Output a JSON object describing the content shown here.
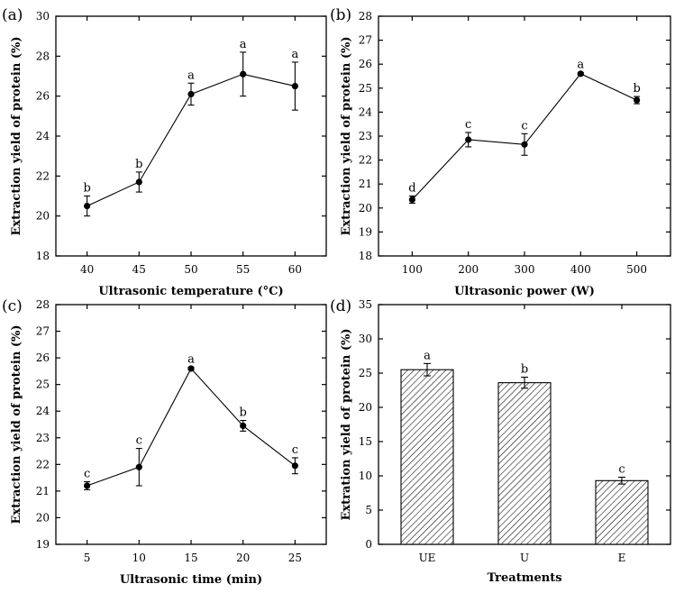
{
  "chart_data": [
    {
      "panel": "(a)",
      "type": "line",
      "x": [
        40,
        45,
        50,
        55,
        60
      ],
      "values": [
        20.5,
        21.7,
        26.1,
        27.1,
        26.5
      ],
      "errors": [
        0.5,
        0.5,
        0.55,
        1.1,
        1.2
      ],
      "significance": [
        "b",
        "b",
        "a",
        "a",
        "a"
      ],
      "xlabel": "Ultrasonic temperature (°C)",
      "ylabel": "Extraction yield of protein (%)",
      "xlim": [
        37,
        63
      ],
      "ylim": [
        18,
        30
      ],
      "yticks": [
        18,
        20,
        22,
        24,
        26,
        28,
        30
      ],
      "grid": false
    },
    {
      "panel": "(b)",
      "type": "line",
      "x": [
        100,
        200,
        300,
        400,
        500
      ],
      "values": [
        20.35,
        22.85,
        22.65,
        25.6,
        24.5
      ],
      "errors": [
        0.15,
        0.3,
        0.45,
        0.05,
        0.15
      ],
      "significance": [
        "d",
        "c",
        "c",
        "a",
        "b"
      ],
      "xlabel": "Ultrasonic power (W)",
      "ylabel": "Extraction yield of protein (%)",
      "xlim": [
        40,
        560
      ],
      "ylim": [
        18,
        28
      ],
      "yticks": [
        18,
        19,
        20,
        21,
        22,
        23,
        24,
        25,
        26,
        27,
        28
      ],
      "grid": false
    },
    {
      "panel": "(c)",
      "type": "line",
      "x": [
        5,
        10,
        15,
        20,
        25
      ],
      "values": [
        21.2,
        21.9,
        25.6,
        23.45,
        21.95
      ],
      "errors": [
        0.15,
        0.7,
        0.05,
        0.2,
        0.3
      ],
      "significance": [
        "c",
        "c",
        "a",
        "b",
        "c"
      ],
      "xlabel": "Ultrasonic time (min)",
      "ylabel": "Extraction yield of protein (%)",
      "xlim": [
        2,
        28
      ],
      "ylim": [
        19,
        28
      ],
      "yticks": [
        19,
        20,
        21,
        22,
        23,
        24,
        25,
        26,
        27,
        28
      ],
      "grid": false
    },
    {
      "panel": "(d)",
      "type": "bar",
      "categories": [
        "UE",
        "U",
        "E"
      ],
      "values": [
        25.5,
        23.6,
        9.3
      ],
      "errors": [
        0.9,
        0.8,
        0.5
      ],
      "significance": [
        "a",
        "b",
        "c"
      ],
      "xlabel": "Treatments",
      "ylabel": "Extration yield of protein (%)",
      "ylim": [
        0,
        35
      ],
      "yticks": [
        0,
        5,
        10,
        15,
        20,
        25,
        30,
        35
      ],
      "grid": false
    }
  ]
}
